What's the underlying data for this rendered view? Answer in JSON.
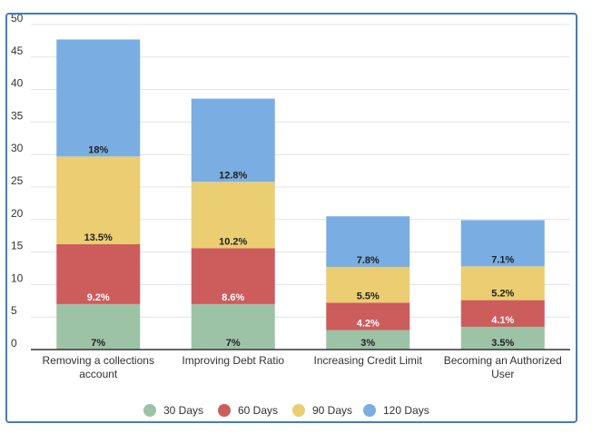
{
  "chart_data": {
    "type": "bar",
    "stacked": true,
    "categories": [
      [
        "Removing a collections",
        "account"
      ],
      [
        "Improving Debt Ratio"
      ],
      [
        "Increasing Credit Limit"
      ],
      [
        "Becoming an Authorized",
        "User"
      ]
    ],
    "series": [
      {
        "name": "30 Days",
        "color": "#9dc3a6",
        "values": [
          7,
          7,
          3,
          3.5
        ],
        "labels": [
          "7%",
          "7%",
          "3%",
          "3.5%"
        ],
        "label_color": "#222222"
      },
      {
        "name": "60 Days",
        "color": "#cd5c5c",
        "values": [
          9.2,
          8.6,
          4.2,
          4.1
        ],
        "labels": [
          "9.2%",
          "8.6%",
          "4.2%",
          "4.1%"
        ],
        "label_color": "#ffffff"
      },
      {
        "name": "90 Days",
        "color": "#ebcd72",
        "values": [
          13.5,
          10.2,
          5.5,
          5.2
        ],
        "labels": [
          "13.5%",
          "10.2%",
          "5.5%",
          "5.2%"
        ],
        "label_color": "#222222"
      },
      {
        "name": "120 Days",
        "color": "#7aaee2",
        "values": [
          18,
          12.8,
          7.8,
          7.1
        ],
        "labels": [
          "18%",
          "12.8%",
          "7.8%",
          "7.1%"
        ],
        "label_color": "#222222"
      }
    ],
    "ylim": [
      0,
      50
    ],
    "yticks": [
      0,
      5,
      10,
      15,
      20,
      25,
      30,
      35,
      40,
      45,
      50
    ],
    "grid": true,
    "legend_position": "bottom"
  }
}
